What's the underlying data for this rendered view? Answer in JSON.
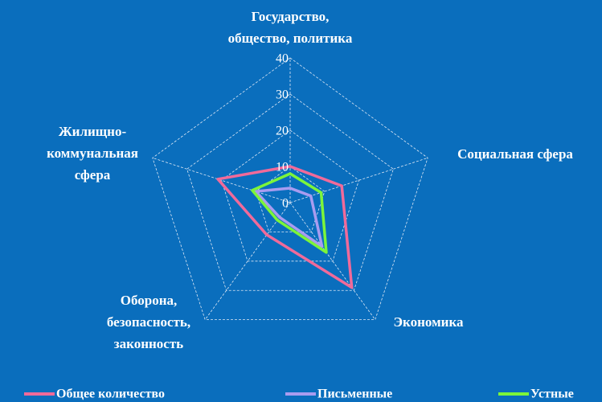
{
  "chart_data": {
    "type": "radar",
    "categories": [
      [
        "Государство,",
        "общество, политика"
      ],
      [
        "Социальная сфера"
      ],
      [
        "Экономика"
      ],
      [
        "Оборона,",
        "безопасность,",
        "законность"
      ],
      [
        "Жилищно-",
        "коммунальная",
        "сфера"
      ]
    ],
    "series": [
      {
        "name": "Общее количество",
        "color": "#f06a9a",
        "values": [
          10,
          15,
          29,
          11,
          21
        ]
      },
      {
        "name": "Письменные",
        "color": "#a99cf0",
        "values": [
          4,
          6,
          15,
          5,
          10
        ]
      },
      {
        "name": "Устные",
        "color": "#7cf53a",
        "values": [
          8,
          9,
          17,
          6,
          11
        ]
      }
    ],
    "ylim": [
      0,
      40
    ],
    "yticks": [
      0,
      10,
      20,
      30,
      40
    ],
    "grid": true
  }
}
